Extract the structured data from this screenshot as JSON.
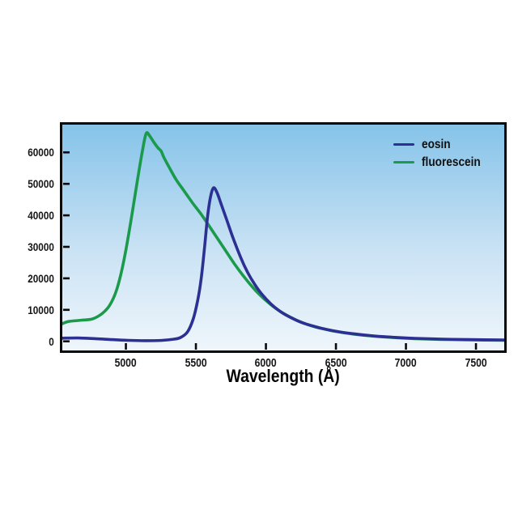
{
  "chart_data": {
    "type": "line",
    "title": "",
    "xlabel": "Wavelength (Å)",
    "ylabel": "",
    "xlim": [
      4546,
      7702
    ],
    "ylim": [
      -2900,
      68800
    ],
    "xticks": [
      5000,
      5500,
      6000,
      6500,
      7000,
      7500
    ],
    "yticks": [
      0,
      10000,
      20000,
      30000,
      40000,
      50000,
      60000
    ],
    "grid": false,
    "legend_position": "top-right",
    "background_gradient": [
      "#85c3e9",
      "#c9e2f4",
      "#eff6fb"
    ],
    "axis_color": "#0a0a0a",
    "series": [
      {
        "name": "eosin",
        "color": "#2b3092",
        "peak": {
          "x": 5625,
          "y": 48700
        },
        "points": [
          [
            4546,
            1000
          ],
          [
            4660,
            1050
          ],
          [
            4780,
            850
          ],
          [
            4900,
            550
          ],
          [
            5020,
            300
          ],
          [
            5140,
            200
          ],
          [
            5260,
            300
          ],
          [
            5345,
            700
          ],
          [
            5390,
            1200
          ],
          [
            5440,
            3000
          ],
          [
            5480,
            7000
          ],
          [
            5512,
            12800
          ],
          [
            5538,
            20000
          ],
          [
            5562,
            30000
          ],
          [
            5583,
            39500
          ],
          [
            5603,
            45600
          ],
          [
            5625,
            48700
          ],
          [
            5650,
            47300
          ],
          [
            5678,
            43900
          ],
          [
            5718,
            38800
          ],
          [
            5768,
            32500
          ],
          [
            5818,
            26800
          ],
          [
            5868,
            22000
          ],
          [
            5918,
            18200
          ],
          [
            5972,
            14900
          ],
          [
            6035,
            11900
          ],
          [
            6105,
            9400
          ],
          [
            6175,
            7600
          ],
          [
            6255,
            6000
          ],
          [
            6340,
            4800
          ],
          [
            6430,
            3800
          ],
          [
            6525,
            3000
          ],
          [
            6635,
            2350
          ],
          [
            6760,
            1750
          ],
          [
            6905,
            1300
          ],
          [
            7060,
            950
          ],
          [
            7260,
            700
          ],
          [
            7460,
            550
          ],
          [
            7702,
            430
          ]
        ]
      },
      {
        "name": "fluorescein",
        "color": "#1a9a4a",
        "peak": {
          "x": 5145,
          "y": 66000
        },
        "points": [
          [
            4546,
            5600
          ],
          [
            4590,
            6300
          ],
          [
            4680,
            6700
          ],
          [
            4760,
            7100
          ],
          [
            4830,
            8800
          ],
          [
            4885,
            11500
          ],
          [
            4935,
            16500
          ],
          [
            4985,
            25500
          ],
          [
            5035,
            38000
          ],
          [
            5080,
            50500
          ],
          [
            5118,
            60500
          ],
          [
            5145,
            66000
          ],
          [
            5170,
            65200
          ],
          [
            5200,
            63200
          ],
          [
            5230,
            61400
          ],
          [
            5252,
            60400
          ],
          [
            5270,
            58500
          ],
          [
            5305,
            55600
          ],
          [
            5355,
            51600
          ],
          [
            5415,
            47800
          ],
          [
            5475,
            44000
          ],
          [
            5535,
            40500
          ],
          [
            5595,
            36600
          ],
          [
            5655,
            32600
          ],
          [
            5715,
            28600
          ],
          [
            5775,
            24600
          ],
          [
            5835,
            21000
          ],
          [
            5895,
            17700
          ],
          [
            5955,
            14800
          ],
          [
            6025,
            12000
          ],
          [
            6095,
            9700
          ],
          [
            6165,
            7900
          ],
          [
            6245,
            6200
          ],
          [
            6335,
            4800
          ],
          [
            6425,
            3800
          ],
          [
            6515,
            3000
          ],
          [
            6625,
            2300
          ],
          [
            6755,
            1700
          ],
          [
            6905,
            1200
          ],
          [
            7060,
            850
          ],
          [
            7260,
            600
          ],
          [
            7460,
            450
          ],
          [
            7702,
            330
          ]
        ]
      }
    ]
  }
}
